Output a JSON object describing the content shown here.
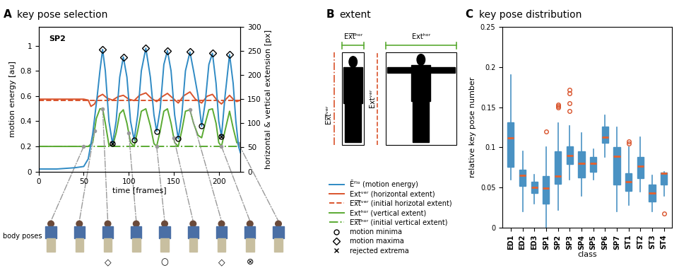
{
  "chart_data": [
    {
      "type": "line",
      "panel": "A",
      "title": "key pose selection",
      "annotation": "SP2",
      "x_label": "time [frames]",
      "y_label": "motion energy [au]",
      "y2_label": "horizontal & vertical extension [px]",
      "xlim": [
        0,
        224
      ],
      "xticks": [
        0,
        50,
        100,
        150,
        200
      ],
      "ylim": [
        0,
        1.15
      ],
      "yticks": [
        0,
        0.2,
        0.4,
        0.6,
        0.8,
        1
      ],
      "y2lim": [
        0,
        300
      ],
      "y2ticks": [
        0,
        50,
        100,
        150,
        200,
        250,
        300
      ],
      "legend": "center",
      "series": [
        {
          "name": "Ẽᶠˡᵒ (motion energy)",
          "type": "line",
          "color": "#2f8ac4",
          "line_style": "solid",
          "x": [
            0,
            20,
            40,
            50,
            55,
            60,
            65,
            68,
            71,
            74,
            78,
            82,
            86,
            90,
            94,
            98,
            102,
            106,
            110,
            114,
            119,
            124,
            128,
            131,
            135,
            139,
            143,
            147,
            151,
            155,
            159,
            163,
            168,
            172,
            177,
            181,
            185,
            189,
            193,
            197,
            200,
            203,
            207,
            212,
            216,
            219,
            222,
            224
          ],
          "values": [
            0.02,
            0.02,
            0.03,
            0.04,
            0.1,
            0.3,
            0.6,
            0.8,
            0.97,
            0.8,
            0.4,
            0.22,
            0.4,
            0.75,
            0.91,
            0.75,
            0.4,
            0.25,
            0.45,
            0.8,
            0.98,
            0.75,
            0.45,
            0.32,
            0.5,
            0.85,
            0.96,
            0.8,
            0.45,
            0.26,
            0.45,
            0.8,
            0.95,
            0.8,
            0.6,
            0.36,
            0.55,
            0.85,
            0.94,
            0.7,
            0.4,
            0.28,
            0.6,
            0.93,
            0.7,
            0.4,
            0.2,
            0.15
          ]
        },
        {
          "name": "Extᵛᵉʳ (horizontal extent)",
          "type": "line",
          "axis": "y2",
          "color": "#d9532b",
          "line_style": "solid",
          "x": [
            0,
            50,
            55,
            58,
            62,
            66,
            71,
            76,
            82,
            88,
            94,
            100,
            106,
            112,
            119,
            125,
            131,
            137,
            143,
            149,
            155,
            161,
            168,
            174,
            181,
            187,
            193,
            198,
            203,
            208,
            212,
            216,
            220,
            224
          ],
          "values": [
            150,
            150,
            148,
            135,
            140,
            155,
            160,
            152,
            148,
            155,
            158,
            150,
            147,
            158,
            163,
            152,
            145,
            155,
            162,
            152,
            142,
            157,
            165,
            150,
            142,
            156,
            160,
            148,
            140,
            150,
            158,
            150,
            145,
            148
          ]
        },
        {
          "name": "E̅x̅t̅ᵛᵉʳ (initial horizotal extent)",
          "type": "line",
          "axis": "y2",
          "color": "#d9532b",
          "line_style": "dashed",
          "x": [
            0,
            224
          ],
          "values": [
            148,
            148
          ]
        },
        {
          "name": "Extʰᵒʳ (vertical extent)",
          "type": "line",
          "axis": "y2",
          "color": "#5aaa32",
          "line_style": "solid",
          "x": [
            0,
            55,
            60,
            64,
            68,
            71,
            74,
            78,
            82,
            86,
            90,
            94,
            98,
            102,
            106,
            110,
            114,
            119,
            124,
            128,
            131,
            135,
            139,
            143,
            147,
            151,
            155,
            159,
            163,
            168,
            172,
            177,
            181,
            185,
            189,
            193,
            197,
            200,
            203,
            207,
            212,
            216,
            220,
            224
          ],
          "values": [
            52,
            52,
            60,
            110,
            130,
            130,
            100,
            55,
            52,
            80,
            120,
            128,
            100,
            60,
            52,
            85,
            125,
            130,
            95,
            58,
            52,
            85,
            125,
            130,
            100,
            60,
            52,
            85,
            125,
            128,
            100,
            75,
            70,
            100,
            128,
            130,
            100,
            60,
            52,
            85,
            125,
            90,
            60,
            55
          ]
        },
        {
          "name": "E̅x̅t̅ʰᵒʳ (initial vertical extent)",
          "type": "line",
          "axis": "y2",
          "color": "#5aaa32",
          "line_style": "dashdot",
          "x": [
            0,
            224
          ],
          "values": [
            52,
            52
          ]
        },
        {
          "name": "motion minima",
          "type": "scatter",
          "color": "#000000",
          "marker": "circle",
          "x": [
            82,
            106,
            131,
            155,
            181,
            203
          ],
          "values": [
            0.22,
            0.25,
            0.32,
            0.26,
            0.36,
            0.28
          ]
        },
        {
          "name": "motion maxima",
          "type": "scatter",
          "color": "#000000",
          "marker": "diamond",
          "x": [
            71,
            94,
            119,
            143,
            168,
            193,
            212
          ],
          "values": [
            0.97,
            0.91,
            0.98,
            0.96,
            0.95,
            0.94,
            0.93
          ]
        },
        {
          "name": "rejected extrema",
          "type": "scatter",
          "color": "#000000",
          "marker": "x",
          "x": [
            82,
            203
          ],
          "values": [
            0.22,
            0.28
          ]
        }
      ],
      "body_poses": {
        "label": "body poses",
        "frames": [
          50,
          62,
          71,
          100,
          131,
          150,
          168,
          203,
          222
        ],
        "symbols": [
          null,
          null,
          "◇",
          null,
          "○",
          null,
          "◇",
          "⊗",
          null
        ]
      }
    },
    {
      "type": "diagram",
      "panel": "B",
      "title": "extent",
      "labels": {
        "initial_horizontal": "E̅x̅t̅ʰᵒʳ",
        "horizontal": "Extʰᵒʳ",
        "initial_vertical": "E̅x̅t̅ᵛᵉʳ",
        "vertical": "Extᵛᵉʳ"
      }
    },
    {
      "type": "box",
      "panel": "C",
      "title": "key pose distribution",
      "x_label": "class",
      "y_label": "relative key pose number",
      "ylim": [
        0,
        0.25
      ],
      "yticks": [
        0,
        0.05,
        0.1,
        0.15,
        0.2,
        0.25
      ],
      "color": "#4a92c3",
      "median_color": "#e8602c",
      "flier_color": "#d9532b",
      "categories": [
        "ED1",
        "ED2",
        "ED3",
        "SP1",
        "SP2",
        "SP3",
        "SP4",
        "SP5",
        "SP6",
        "SP7",
        "ST1",
        "ST2",
        "ST3",
        "ST4"
      ],
      "stats": [
        {
          "med": 0.112,
          "q1": 0.076,
          "q3": 0.131,
          "whislo": 0.06,
          "whishi": 0.19,
          "fliers": []
        },
        {
          "med": 0.065,
          "q1": 0.052,
          "q3": 0.072,
          "whislo": 0.02,
          "whishi": 0.095,
          "fliers": []
        },
        {
          "med": 0.05,
          "q1": 0.043,
          "q3": 0.057,
          "whislo": 0.03,
          "whishi": 0.066,
          "fliers": []
        },
        {
          "med": 0.049,
          "q1": 0.03,
          "q3": 0.064,
          "whislo": 0.0,
          "whishi": 0.1,
          "fliers": [
            0.12
          ]
        },
        {
          "med": 0.064,
          "q1": 0.055,
          "q3": 0.095,
          "whislo": 0.022,
          "whishi": 0.13,
          "fliers": [
            0.15,
            0.151,
            0.153
          ]
        },
        {
          "med": 0.09,
          "q1": 0.079,
          "q3": 0.101,
          "whislo": 0.06,
          "whishi": 0.127,
          "fliers": [
            0.145,
            0.155,
            0.167,
            0.172
          ]
        },
        {
          "med": 0.08,
          "q1": 0.063,
          "q3": 0.095,
          "whislo": 0.04,
          "whishi": 0.118,
          "fliers": []
        },
        {
          "med": 0.08,
          "q1": 0.07,
          "q3": 0.088,
          "whislo": 0.06,
          "whishi": 0.098,
          "fliers": []
        },
        {
          "med": 0.113,
          "q1": 0.106,
          "q3": 0.126,
          "whislo": 0.088,
          "whishi": 0.14,
          "fliers": []
        },
        {
          "med": 0.089,
          "q1": 0.054,
          "q3": 0.1,
          "whislo": 0.02,
          "whishi": 0.125,
          "fliers": []
        },
        {
          "med": 0.057,
          "q1": 0.046,
          "q3": 0.068,
          "whislo": 0.028,
          "whishi": 0.1,
          "fliers": [
            0.105,
            0.107
          ]
        },
        {
          "med": 0.077,
          "q1": 0.062,
          "q3": 0.088,
          "whislo": 0.045,
          "whishi": 0.113,
          "fliers": []
        },
        {
          "med": 0.043,
          "q1": 0.033,
          "q3": 0.054,
          "whislo": 0.02,
          "whishi": 0.065,
          "fliers": []
        },
        {
          "med": 0.068,
          "q1": 0.054,
          "q3": 0.069,
          "whislo": 0.04,
          "whishi": 0.07,
          "fliers": [
            0.018
          ]
        }
      ]
    }
  ]
}
